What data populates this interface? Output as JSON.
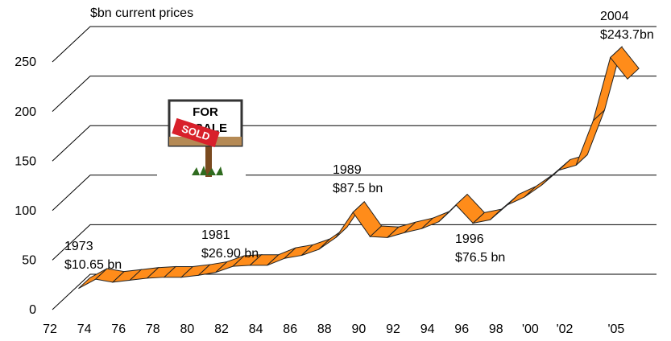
{
  "chart_data": {
    "type": "ribbon",
    "y_label": "$bn current prices",
    "x": [
      1973,
      1974,
      1975,
      1976,
      1977,
      1978,
      1979,
      1980,
      1981,
      1982,
      1983,
      1984,
      1985,
      1986,
      1987,
      1988,
      1989,
      1990,
      1991,
      1992,
      1993,
      1994,
      1995,
      1996,
      1997,
      1998,
      1999,
      2000,
      2001,
      2002,
      2003,
      2004,
      2005
    ],
    "values": [
      10.65,
      20,
      17,
      19,
      21,
      22,
      22,
      24,
      26.9,
      33,
      34,
      34,
      41,
      44,
      50,
      62,
      87.5,
      63,
      62,
      67,
      71,
      78,
      95,
      76.5,
      80,
      95,
      103,
      115,
      130,
      135,
      180,
      243.7,
      222
    ],
    "color": "#ff8c1a",
    "xlim": [
      1972,
      2006
    ],
    "xticks": [
      {
        "value": 1972,
        "label": "72"
      },
      {
        "value": 1974,
        "label": "74"
      },
      {
        "value": 1976,
        "label": "76"
      },
      {
        "value": 1978,
        "label": "78"
      },
      {
        "value": 1980,
        "label": "80"
      },
      {
        "value": 1982,
        "label": "82"
      },
      {
        "value": 1984,
        "label": "84"
      },
      {
        "value": 1986,
        "label": "86"
      },
      {
        "value": 1988,
        "label": "88"
      },
      {
        "value": 1990,
        "label": "90"
      },
      {
        "value": 1992,
        "label": "92"
      },
      {
        "value": 1994,
        "label": "94"
      },
      {
        "value": 1996,
        "label": "96"
      },
      {
        "value": 1998,
        "label": "98"
      },
      {
        "value": 2000,
        "label": "'00"
      },
      {
        "value": 2002,
        "label": "'02"
      },
      {
        "value": 2005,
        "label": "'05"
      }
    ],
    "ylim": [
      0,
      250
    ],
    "yticks": [
      0,
      50,
      100,
      150,
      200,
      250
    ],
    "grid": true,
    "annotations": [
      [
        "1973",
        "$10.65 bn"
      ],
      [
        "1981",
        "$26.90 bn"
      ],
      [
        "1989",
        "$87.5 bn"
      ],
      [
        "1996",
        "$76.5 bn"
      ],
      [
        "2004",
        "$243.7bn"
      ]
    ],
    "sign": {
      "top": "FOR",
      "bottom": "SALE",
      "stamp": "SOLD"
    }
  }
}
